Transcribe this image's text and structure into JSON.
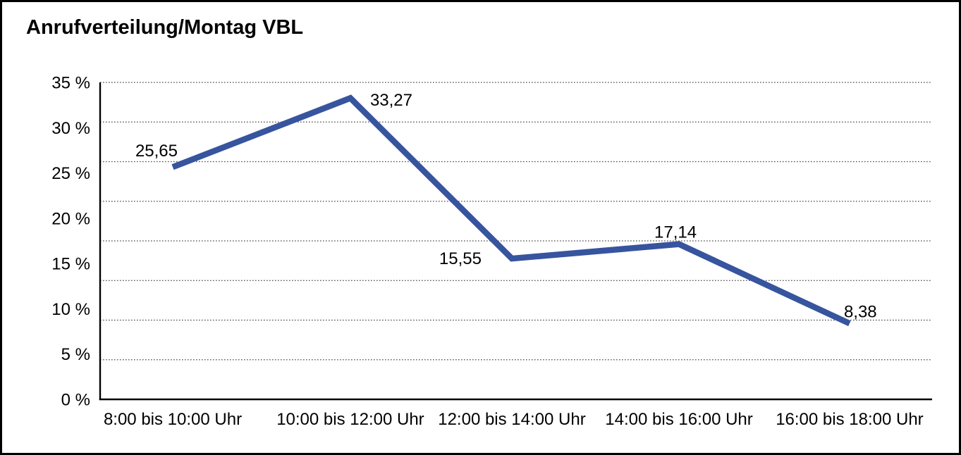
{
  "title": "Anrufverteilung/Montag VBL",
  "chart_data": {
    "type": "line",
    "title": "Anrufverteilung/Montag VBL",
    "categories": [
      "8:00 bis 10:00 Uhr",
      "10:00 bis 12:00 Uhr",
      "12:00 bis 14:00 Uhr",
      "14:00 bis 16:00 Uhr",
      "16:00 bis 18:00 Uhr"
    ],
    "values": [
      25.65,
      33.27,
      15.55,
      17.14,
      8.38
    ],
    "value_labels": [
      "25,65",
      "33,27",
      "15,55",
      "17,14",
      "8,38"
    ],
    "y_tick_labels": [
      "35 %",
      "30 %",
      "25 %",
      "20 %",
      "15 %",
      "10 %",
      "5 %",
      "0 %"
    ],
    "ylim": [
      0,
      35
    ],
    "xlabel": "",
    "ylabel": "",
    "legend": "none",
    "grid": "horizontal-dotted",
    "gridline_rows": 8,
    "line_color": "#37549E",
    "axis_color": "#000000",
    "gridline_color": "#4a4a4a",
    "text_color": "#000000",
    "frame_border_color": "#000000",
    "background_color": "#ffffff",
    "label_placements": [
      "above-left",
      "right",
      "left",
      "above",
      "above-right"
    ]
  }
}
